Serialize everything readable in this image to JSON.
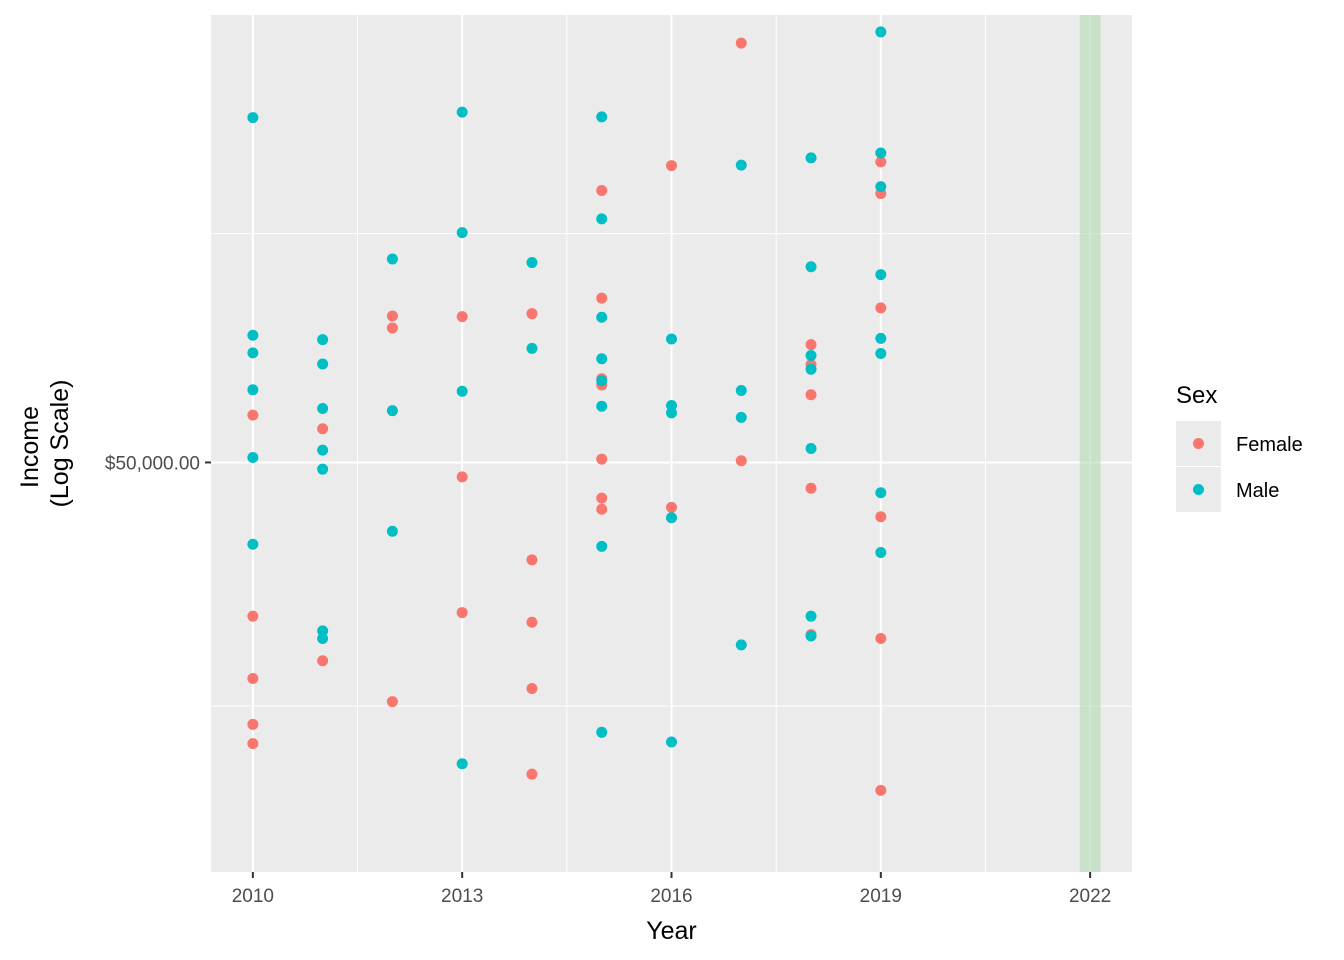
{
  "chart_data": {
    "type": "scatter",
    "xlabel": "Year",
    "ylabel": [
      "Income",
      "(Log Scale)"
    ],
    "x_ticks": [
      2010,
      2013,
      2016,
      2019,
      2022
    ],
    "xlim": [
      2009.4,
      2022.6
    ],
    "y_scale": "log",
    "y_ticks_labeled": [
      {
        "value": 50000,
        "label": "$50,000.00"
      }
    ],
    "y_gridlines_unlabeled": [
      27900,
      86500
    ],
    "ylim": [
      18750,
      146000
    ],
    "highlight_band": {
      "x": [
        2021.85,
        2022.15
      ],
      "color": "#b2d8b2"
    },
    "legend": {
      "title": "Sex",
      "position": "right"
    },
    "grid": true,
    "series": [
      {
        "name": "Female",
        "color": "#F8766D",
        "points": [
          [
            2010,
            56000
          ],
          [
            2010,
            34600
          ],
          [
            2010,
            29800
          ],
          [
            2010,
            26700
          ],
          [
            2010,
            25500
          ],
          [
            2011,
            54200
          ],
          [
            2011,
            31100
          ],
          [
            2012,
            71000
          ],
          [
            2012,
            69000
          ],
          [
            2012,
            28200
          ],
          [
            2013,
            70900
          ],
          [
            2013,
            48300
          ],
          [
            2013,
            34900
          ],
          [
            2014,
            71400
          ],
          [
            2014,
            39600
          ],
          [
            2014,
            34100
          ],
          [
            2014,
            29100
          ],
          [
            2014,
            23700
          ],
          [
            2015,
            95900
          ],
          [
            2015,
            74100
          ],
          [
            2015,
            61100
          ],
          [
            2015,
            60200
          ],
          [
            2015,
            50400
          ],
          [
            2015,
            45900
          ],
          [
            2015,
            44700
          ],
          [
            2016,
            101800
          ],
          [
            2016,
            44900
          ],
          [
            2017,
            136500
          ],
          [
            2017,
            50200
          ],
          [
            2018,
            66300
          ],
          [
            2018,
            63200
          ],
          [
            2018,
            58800
          ],
          [
            2018,
            47000
          ],
          [
            2018,
            33100
          ],
          [
            2019,
            102700
          ],
          [
            2019,
            95200
          ],
          [
            2019,
            72400
          ],
          [
            2019,
            43900
          ],
          [
            2019,
            32800
          ],
          [
            2019,
            22800
          ]
        ]
      },
      {
        "name": "Male",
        "color": "#00BFC4",
        "points": [
          [
            2010,
            114200
          ],
          [
            2010,
            67800
          ],
          [
            2010,
            65000
          ],
          [
            2010,
            59500
          ],
          [
            2010,
            50600
          ],
          [
            2010,
            41100
          ],
          [
            2011,
            67100
          ],
          [
            2011,
            63300
          ],
          [
            2011,
            56900
          ],
          [
            2011,
            51500
          ],
          [
            2011,
            49200
          ],
          [
            2011,
            33400
          ],
          [
            2011,
            32800
          ],
          [
            2012,
            81400
          ],
          [
            2012,
            56600
          ],
          [
            2012,
            42400
          ],
          [
            2013,
            115700
          ],
          [
            2013,
            86700
          ],
          [
            2013,
            59300
          ],
          [
            2013,
            24300
          ],
          [
            2014,
            80700
          ],
          [
            2014,
            65700
          ],
          [
            2015,
            114400
          ],
          [
            2015,
            89600
          ],
          [
            2015,
            70800
          ],
          [
            2015,
            64100
          ],
          [
            2015,
            60800
          ],
          [
            2015,
            57200
          ],
          [
            2015,
            40900
          ],
          [
            2015,
            26200
          ],
          [
            2016,
            67200
          ],
          [
            2016,
            57300
          ],
          [
            2016,
            56300
          ],
          [
            2016,
            43800
          ],
          [
            2016,
            25600
          ],
          [
            2017,
            101900
          ],
          [
            2017,
            59400
          ],
          [
            2017,
            55700
          ],
          [
            2017,
            32300
          ],
          [
            2018,
            103700
          ],
          [
            2018,
            79900
          ],
          [
            2018,
            64600
          ],
          [
            2018,
            62500
          ],
          [
            2018,
            51700
          ],
          [
            2018,
            34600
          ],
          [
            2018,
            33000
          ],
          [
            2019,
            140200
          ],
          [
            2019,
            104900
          ],
          [
            2019,
            96800
          ],
          [
            2019,
            78400
          ],
          [
            2019,
            67300
          ],
          [
            2019,
            64900
          ],
          [
            2019,
            46500
          ],
          [
            2019,
            40300
          ]
        ]
      }
    ]
  }
}
